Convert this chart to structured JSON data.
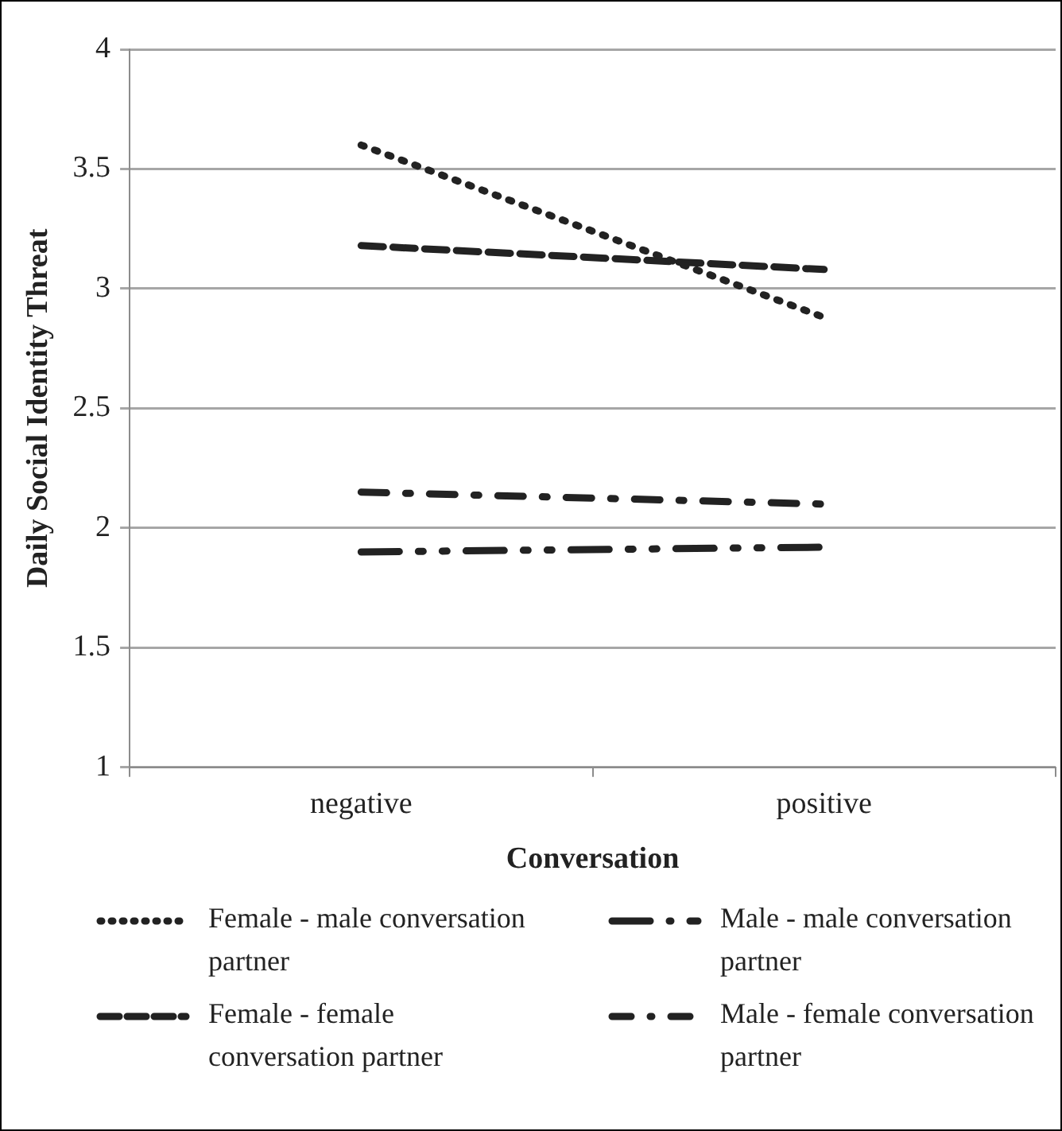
{
  "chart_data": {
    "type": "line",
    "xlabel": "Conversation",
    "ylabel": "Daily Social Identity Threat",
    "categories": [
      "negative",
      "positive"
    ],
    "series": [
      {
        "name": "Female - male conversation partner",
        "color": "#222222",
        "values": [
          3.6,
          2.88
        ],
        "line_style": "dotted"
      },
      {
        "name": "Female - female conversation partner",
        "color": "#222222",
        "values": [
          3.18,
          3.08
        ],
        "line_style": "dashed"
      },
      {
        "name": "Male - male conversation partner",
        "color": "#222222",
        "values": [
          1.9,
          1.92
        ],
        "line_style": "dashdotdot"
      },
      {
        "name": "Male - female conversation partner",
        "color": "#222222",
        "values": [
          2.15,
          2.1
        ],
        "line_style": "dashdot"
      }
    ],
    "ylim": [
      1,
      4
    ],
    "yticks": [
      1,
      1.5,
      2,
      2.5,
      3,
      3.5,
      4
    ],
    "grid": "y",
    "legend": "bottom",
    "marker": "none"
  }
}
